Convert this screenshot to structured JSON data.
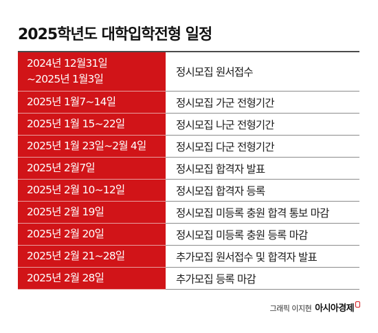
{
  "title": "2025학년도 대학입학전형 일정",
  "schedule": [
    {
      "date_lines": [
        "2024년 12월31일",
        "~2025년 1월3일"
      ],
      "event": "정시모집 원서접수"
    },
    {
      "date_lines": [
        "2025년 1월7~14일"
      ],
      "event": "정시모집 가군 전형기간"
    },
    {
      "date_lines": [
        "2025년 1월 15~22일"
      ],
      "event": "정시모집 나군 전형기간"
    },
    {
      "date_lines": [
        "2025년 1월 23일~2월 4일"
      ],
      "event": "정시모집 다군 전형기간"
    },
    {
      "date_lines": [
        "2025년 2월7일"
      ],
      "event": "정시모집 합격자 발표"
    },
    {
      "date_lines": [
        "2025년 2월 10~12일"
      ],
      "event": "정시모집 합격자 등록"
    },
    {
      "date_lines": [
        "2025년 2월 19일"
      ],
      "event": "정시모집 미등록 충원 합격 통보 마감"
    },
    {
      "date_lines": [
        "2025년 2월 20일"
      ],
      "event": "정시모집 미등록 충원 등록 마감"
    },
    {
      "date_lines": [
        "2025년 2월 21~28일"
      ],
      "event": "추가모집 원서접수 및 합격자 발표"
    },
    {
      "date_lines": [
        "2025년 2월 28일"
      ],
      "event": "추가모집 등록 마감"
    }
  ],
  "credit": {
    "text": "그래픽 이지현",
    "brand": "아시아경제",
    "brand_icon": "brand-mark-icon"
  },
  "colors": {
    "date_background": "#d11418",
    "date_text": "#ffffff",
    "rule": "#4a4a4a"
  }
}
